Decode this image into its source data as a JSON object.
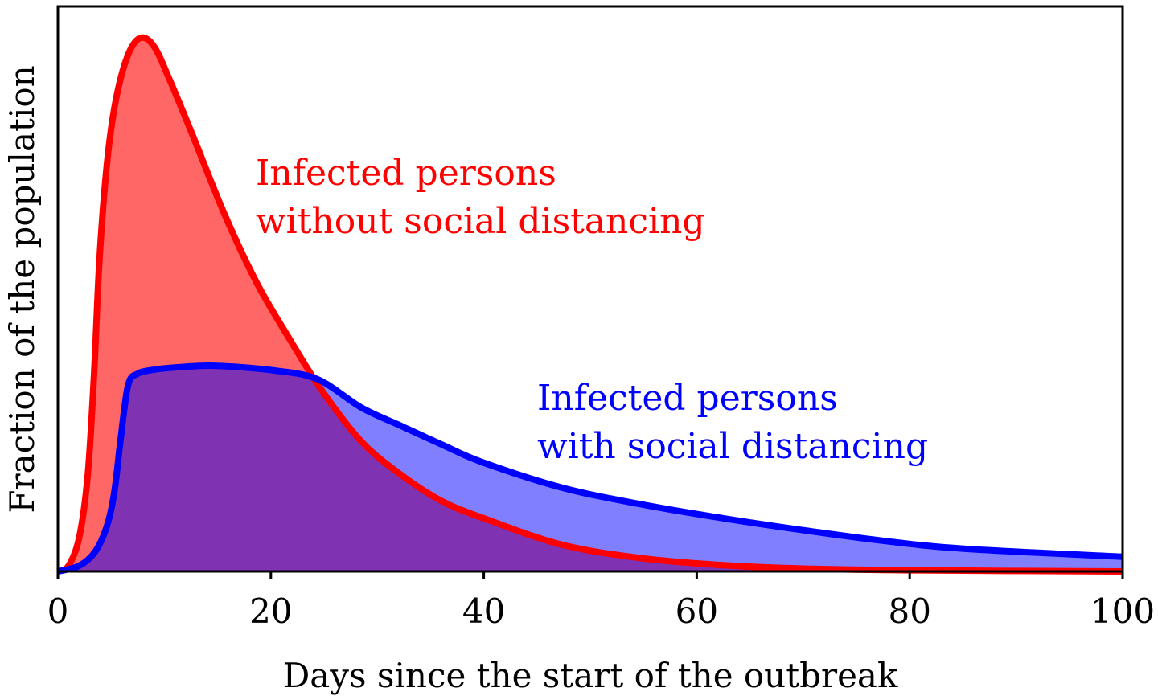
{
  "chart_data": {
    "type": "area",
    "title": "",
    "xlabel": "Days since the start of the outbreak",
    "ylabel": "Fraction of the population",
    "xlim": [
      0,
      100
    ],
    "ylim": [
      0,
      1
    ],
    "x_ticks": [
      "0",
      "20",
      "40",
      "60",
      "80",
      "100"
    ],
    "x_tick_values": [
      0,
      20,
      40,
      60,
      80,
      100
    ],
    "y_ticks": [],
    "grid": false,
    "legend": "none",
    "series": [
      {
        "name": "Infected persons without social distancing",
        "label_lines": [
          "Infected persons",
          "without social distancing"
        ],
        "line_color": "#ff0000",
        "fill_color": "#ff6666",
        "x": [
          0,
          1,
          2,
          2.8,
          3.4,
          3.9,
          4.6,
          5.4,
          6.5,
          7.7,
          9,
          10.5,
          12.7,
          15.7,
          18.7,
          21.8,
          24.8,
          28.5,
          32.3,
          36,
          40,
          47.4,
          55,
          62.5,
          70,
          80,
          100
        ],
        "y": [
          0,
          0.01,
          0.06,
          0.17,
          0.35,
          0.55,
          0.72,
          0.83,
          0.91,
          0.944,
          0.93,
          0.87,
          0.77,
          0.63,
          0.51,
          0.41,
          0.32,
          0.23,
          0.17,
          0.125,
          0.094,
          0.047,
          0.023,
          0.011,
          0.005,
          0.002,
          0
        ]
      },
      {
        "name": "Infected persons with social distancing",
        "label_lines": [
          "Infected persons",
          "with social distancing"
        ],
        "line_color": "#0000ff",
        "fill_color": "#8080ff",
        "x": [
          0,
          2,
          3.5,
          4.6,
          5.3,
          5.9,
          6.6,
          7.5,
          9,
          11,
          14.7,
          20.2,
          24.4,
          28.5,
          32.3,
          36,
          39.9,
          47.4,
          55,
          62.5,
          70,
          77.6,
          85.2,
          100
        ],
        "y": [
          0,
          0.01,
          0.035,
          0.08,
          0.14,
          0.235,
          0.33,
          0.35,
          0.357,
          0.361,
          0.364,
          0.356,
          0.34,
          0.29,
          0.257,
          0.225,
          0.193,
          0.148,
          0.118,
          0.094,
          0.073,
          0.054,
          0.04,
          0.026
        ]
      }
    ]
  }
}
